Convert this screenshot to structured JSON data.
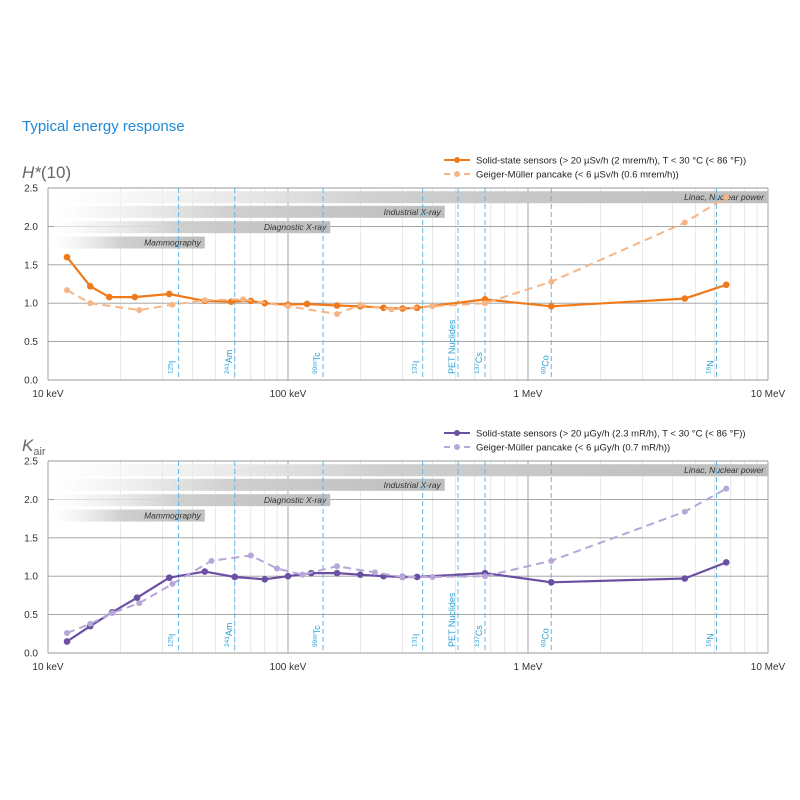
{
  "heading": "Typical energy response",
  "chart_data": [
    {
      "type": "line",
      "title": "H*(10)",
      "title_main": "H",
      "title_sup": "*",
      "title_rest": "(10)",
      "xscale": "log",
      "xlim_keV": [
        10,
        10000
      ],
      "x_tick_values_keV": [
        10,
        100,
        1000,
        10000
      ],
      "x_tick_labels": [
        "10 keV",
        "100 keV",
        "1 MeV",
        "10 MeV"
      ],
      "ylim": [
        0,
        2.5
      ],
      "y_ticks": [
        "0.0",
        "0.5",
        "1.0",
        "1.5",
        "2.0",
        "2.5"
      ],
      "grid": true,
      "legend_position": "top-right",
      "colors": {
        "solid": "#f07a1a",
        "dashed": "#f7b585"
      },
      "bands": [
        {
          "label": "Linac, Nuclear power",
          "x_keV": [
            10,
            10000
          ],
          "level": 2.38
        },
        {
          "label": "Industrial X-ray",
          "x_keV": [
            10,
            450
          ],
          "level": 2.19
        },
        {
          "label": "Diagnostic X-ray",
          "x_keV": [
            10,
            150
          ],
          "level": 1.99
        },
        {
          "label": "Mammography",
          "x_keV": [
            10,
            45
          ],
          "level": 1.79
        }
      ],
      "nuclides": [
        {
          "label": "125I",
          "x_keV": 35
        },
        {
          "label": "241Am",
          "x_keV": 60
        },
        {
          "label": "99mTc",
          "x_keV": 140
        },
        {
          "label": "131I",
          "x_keV": 364
        },
        {
          "label": "PET Nuclides",
          "x_keV": 511
        },
        {
          "label": "137Cs",
          "x_keV": 662
        },
        {
          "label": "60Co",
          "x_keV": 1250
        },
        {
          "label": "16N",
          "x_keV": 6100
        }
      ],
      "series": [
        {
          "name": "Solid-state sensors (> 20 µSv/h (2 mrem/h), T < 30 °C (< 86 °F))",
          "style": "solid",
          "points": [
            [
              12,
              1.6
            ],
            [
              15,
              1.22
            ],
            [
              18,
              1.08
            ],
            [
              23,
              1.08
            ],
            [
              32,
              1.12
            ],
            [
              45,
              1.03
            ],
            [
              58,
              1.02
            ],
            [
              70,
              1.03
            ],
            [
              80,
              1.0
            ],
            [
              100,
              0.98
            ],
            [
              120,
              0.99
            ],
            [
              160,
              0.97
            ],
            [
              200,
              0.96
            ],
            [
              250,
              0.94
            ],
            [
              300,
              0.93
            ],
            [
              345,
              0.94
            ],
            [
              662,
              1.05
            ],
            [
              1250,
              0.96
            ],
            [
              4500,
              1.06
            ],
            [
              6700,
              1.24
            ]
          ]
        },
        {
          "name": "Geiger-Müller pancake (< 6 µSv/h (0.6 mrem/h))",
          "style": "dashed",
          "points": [
            [
              12,
              1.17
            ],
            [
              15,
              1.0
            ],
            [
              24,
              0.91
            ],
            [
              33,
              0.98
            ],
            [
              45,
              1.04
            ],
            [
              65,
              1.05
            ],
            [
              100,
              0.96
            ],
            [
              160,
              0.86
            ],
            [
              200,
              0.98
            ],
            [
              270,
              0.92
            ],
            [
              400,
              0.96
            ],
            [
              662,
              1.0
            ],
            [
              1250,
              1.28
            ],
            [
              4500,
              2.05
            ],
            [
              6700,
              2.38
            ]
          ]
        }
      ]
    },
    {
      "type": "line",
      "title": "Kair",
      "title_main": "K",
      "title_sub": "air",
      "xscale": "log",
      "xlim_keV": [
        10,
        10000
      ],
      "x_tick_values_keV": [
        10,
        100,
        1000,
        10000
      ],
      "x_tick_labels": [
        "10 keV",
        "100 keV",
        "1 MeV",
        "10 MeV"
      ],
      "ylim": [
        0,
        2.5
      ],
      "y_ticks": [
        "0.0",
        "0.5",
        "1.0",
        "1.5",
        "2.0",
        "2.5"
      ],
      "grid": true,
      "legend_position": "top-right",
      "colors": {
        "solid": "#6a4fa3",
        "dashed": "#b7a6d8"
      },
      "bands": [
        {
          "label": "Linac, Nuclear power",
          "x_keV": [
            10,
            10000
          ],
          "level": 2.38
        },
        {
          "label": "Industrial X-ray",
          "x_keV": [
            10,
            450
          ],
          "level": 2.19
        },
        {
          "label": "Diagnostic X-ray",
          "x_keV": [
            10,
            150
          ],
          "level": 1.99
        },
        {
          "label": "Mammography",
          "x_keV": [
            10,
            45
          ],
          "level": 1.79
        }
      ],
      "nuclides": [
        {
          "label": "125I",
          "x_keV": 35
        },
        {
          "label": "241Am",
          "x_keV": 60
        },
        {
          "label": "99mTc",
          "x_keV": 140
        },
        {
          "label": "131I",
          "x_keV": 364
        },
        {
          "label": "PET Nuclides",
          "x_keV": 511
        },
        {
          "label": "137Cs",
          "x_keV": 662
        },
        {
          "label": "60Co",
          "x_keV": 1250
        },
        {
          "label": "16N",
          "x_keV": 6100
        }
      ],
      "series": [
        {
          "name": "Solid-state sensors (> 20 µGy/h (2.3 mR/h), T < 30 °C (< 86 °F))",
          "style": "solid",
          "points": [
            [
              12,
              0.15
            ],
            [
              15,
              0.35
            ],
            [
              18.5,
              0.53
            ],
            [
              23.5,
              0.72
            ],
            [
              32,
              0.98
            ],
            [
              45,
              1.06
            ],
            [
              60,
              0.99
            ],
            [
              80,
              0.96
            ],
            [
              100,
              1.0
            ],
            [
              125,
              1.04
            ],
            [
              160,
              1.04
            ],
            [
              200,
              1.02
            ],
            [
              250,
              1.0
            ],
            [
              300,
              0.99
            ],
            [
              345,
              0.99
            ],
            [
              662,
              1.04
            ],
            [
              1250,
              0.92
            ],
            [
              4500,
              0.97
            ],
            [
              6700,
              1.18
            ]
          ]
        },
        {
          "name": "Geiger-Müller pancake (< 6 µGy/h (0.7 mR/h))",
          "style": "dashed",
          "points": [
            [
              12,
              0.26
            ],
            [
              15,
              0.38
            ],
            [
              18.5,
              0.52
            ],
            [
              24,
              0.65
            ],
            [
              33,
              0.9
            ],
            [
              48,
              1.2
            ],
            [
              70,
              1.27
            ],
            [
              90,
              1.1
            ],
            [
              115,
              1.02
            ],
            [
              160,
              1.13
            ],
            [
              230,
              1.05
            ],
            [
              300,
              0.99
            ],
            [
              400,
              0.99
            ],
            [
              662,
              1.0
            ],
            [
              1250,
              1.2
            ],
            [
              4500,
              1.84
            ],
            [
              6700,
              2.14
            ]
          ]
        }
      ]
    }
  ]
}
